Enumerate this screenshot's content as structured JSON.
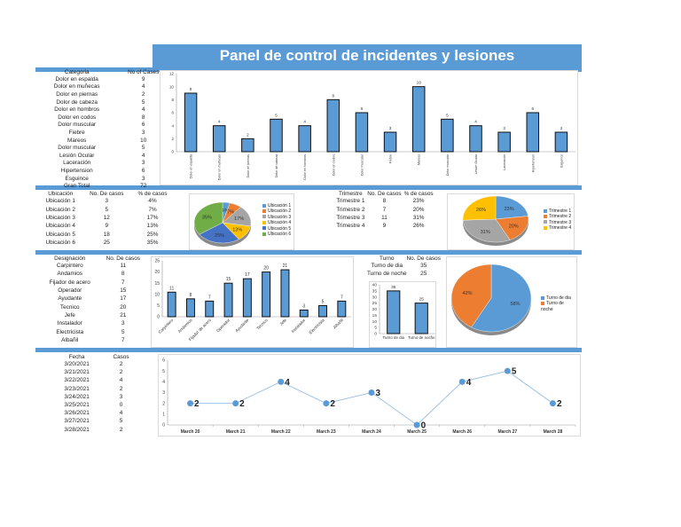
{
  "title": "Panel de control de incidentes y lesiones",
  "colors": {
    "accent": "#5b9bd5",
    "orange": "#ed7d31",
    "gray": "#a5a5a5",
    "yellow": "#ffc000",
    "darkblue": "#4472c4",
    "green": "#70ad47"
  },
  "categoria_table": {
    "headers": [
      "Categoria",
      "No of Cases"
    ],
    "rows": [
      [
        "Dolor en espalda",
        "9"
      ],
      [
        "Dolor en muñecas",
        "4"
      ],
      [
        "Dolor en piernas",
        "2"
      ],
      [
        "Dolor de cabeza",
        "5"
      ],
      [
        "Dolor en hombros",
        "4"
      ],
      [
        "Dolor en codos",
        "8"
      ],
      [
        "Dolor muscular",
        "6"
      ],
      [
        "Fiebre",
        "3"
      ],
      [
        "Mareos",
        "10"
      ],
      [
        "Dolor muscular",
        "5"
      ],
      [
        "Lesión Ocular",
        "4"
      ],
      [
        "Laceración",
        "3"
      ],
      [
        "Hipertension",
        "6"
      ],
      [
        "Esguince",
        "3"
      ],
      [
        "Gran Total",
        "72"
      ]
    ]
  },
  "ubicacion_table": {
    "headers": [
      "Ubicación",
      "No. De casos",
      "% de casos"
    ],
    "rows": [
      [
        "Ubicación 1",
        "3",
        "4%"
      ],
      [
        "Ubicación 2",
        "5",
        "7%"
      ],
      [
        "Ubicación 3",
        "12",
        "17%"
      ],
      [
        "Ubicación 4",
        "9",
        "13%"
      ],
      [
        "Ubicación 5",
        "18",
        "25%"
      ],
      [
        "Ubicación 6",
        "25",
        "35%"
      ]
    ]
  },
  "trimestre_table": {
    "headers": [
      "Trimestre",
      "No. De casos",
      "% de casos"
    ],
    "rows": [
      [
        "Trimestre 1",
        "8",
        "23%"
      ],
      [
        "Trimestre 2",
        "7",
        "20%"
      ],
      [
        "Trimestre 3",
        "11",
        "31%"
      ],
      [
        "Trimestre 4",
        "9",
        "26%"
      ]
    ]
  },
  "designacion_table": {
    "headers": [
      "Designación",
      "No. De casos"
    ],
    "rows": [
      [
        "Carpintero",
        "11"
      ],
      [
        "Andamios",
        "8"
      ],
      [
        "Fijador de acero",
        "7"
      ],
      [
        "Operador",
        "15"
      ],
      [
        "Ayudante",
        "17"
      ],
      [
        "Tecnico",
        "20"
      ],
      [
        "Jefe",
        "21"
      ],
      [
        "Instalador",
        "3"
      ],
      [
        "Electricista",
        "5"
      ],
      [
        "Albañil",
        "7"
      ]
    ]
  },
  "turno_table": {
    "headers": [
      "Turno",
      "No. De casos"
    ],
    "rows": [
      [
        "Turno de dia",
        "35"
      ],
      [
        "Turno de noche",
        "25"
      ]
    ]
  },
  "fecha_table": {
    "headers": [
      "Fecha",
      "Casos"
    ],
    "rows": [
      [
        "3/20/2021",
        "2"
      ],
      [
        "3/21/2021",
        "2"
      ],
      [
        "3/22/2021",
        "4"
      ],
      [
        "3/23/2021",
        "2"
      ],
      [
        "3/24/2021",
        "3"
      ],
      [
        "3/25/2021",
        "0"
      ],
      [
        "3/26/2021",
        "4"
      ],
      [
        "3/27/2021",
        "5"
      ],
      [
        "3/28/2021",
        "2"
      ]
    ]
  },
  "chart_data": [
    {
      "id": "categoria",
      "type": "bar",
      "categories": [
        "Dolor en espalda",
        "Dolor en muñecas",
        "Dolor en piernas",
        "Dolor de cabeza",
        "Dolor en hombros",
        "Dolor en codos",
        "Dolor muscular",
        "Fiebre",
        "Mareos",
        "Dolor muscular",
        "Lesión Ocular",
        "Laceración",
        "Hipertension",
        "Esguince"
      ],
      "values": [
        9,
        4,
        2,
        5,
        4,
        8,
        6,
        3,
        10,
        5,
        4,
        3,
        6,
        3
      ],
      "ylim": [
        0,
        12
      ],
      "yticks": [
        0,
        2,
        4,
        6,
        8,
        10,
        12
      ],
      "grid": false,
      "color": "#5b9bd5"
    },
    {
      "id": "ubicacion",
      "type": "pie",
      "categories": [
        "Ubicación 1",
        "Ubicación 2",
        "Ubicación 3",
        "Ubicación 4",
        "Ubicación 5",
        "Ubicación 6"
      ],
      "values": [
        3,
        5,
        12,
        9,
        18,
        25
      ],
      "labels": [
        "4%",
        "7%",
        "17%",
        "13%",
        "25%",
        "35%"
      ],
      "colors": [
        "#5b9bd5",
        "#ed7d31",
        "#a5a5a5",
        "#ffc000",
        "#4472c4",
        "#70ad47"
      ],
      "legend": "right"
    },
    {
      "id": "trimestre",
      "type": "pie",
      "categories": [
        "Trimestre 1",
        "Trimestre 2",
        "Trimestre 3",
        "Trimestre 4"
      ],
      "values": [
        8,
        7,
        11,
        9
      ],
      "labels": [
        "23%",
        "20%",
        "31%",
        "26%"
      ],
      "colors": [
        "#5b9bd5",
        "#ed7d31",
        "#a5a5a5",
        "#ffc000"
      ],
      "legend": "right"
    },
    {
      "id": "designacion",
      "type": "bar",
      "categories": [
        "Carpintero",
        "Andamios",
        "Fijador de acero",
        "Operador",
        "Ayudante",
        "Tecnico",
        "Jefe",
        "Instalador",
        "Electricista",
        "Albañil"
      ],
      "values": [
        11,
        8,
        7,
        15,
        17,
        20,
        21,
        3,
        5,
        7
      ],
      "ylim": [
        0,
        25
      ],
      "yticks": [
        0,
        5,
        10,
        15,
        20,
        25
      ],
      "grid": false,
      "color": "#5b9bd5"
    },
    {
      "id": "turno_bar",
      "type": "bar",
      "categories": [
        "Turno de dia",
        "Turno de noche"
      ],
      "values": [
        35,
        25
      ],
      "ylim": [
        0,
        40
      ],
      "yticks": [
        0,
        5,
        10,
        15,
        20,
        25,
        30,
        35,
        40
      ],
      "grid": false,
      "color": "#5b9bd5"
    },
    {
      "id": "turno_pie",
      "type": "pie",
      "categories": [
        "Turno de dia",
        "Turno de noche"
      ],
      "values": [
        35,
        25
      ],
      "labels": [
        "58%",
        "42%"
      ],
      "colors": [
        "#5b9bd5",
        "#ed7d31"
      ],
      "legend": "right"
    },
    {
      "id": "fecha",
      "type": "line",
      "categories": [
        "March 20",
        "March 21",
        "March 22",
        "March 23",
        "March 24",
        "March 25",
        "March 26",
        "March 27",
        "March 28"
      ],
      "values": [
        2,
        2,
        4,
        2,
        3,
        0,
        4,
        5,
        2
      ],
      "ylim": [
        0,
        6
      ],
      "yticks": [
        0,
        1,
        2,
        3,
        4,
        5,
        6
      ],
      "grid": false,
      "color": "#5b9bd5"
    }
  ]
}
